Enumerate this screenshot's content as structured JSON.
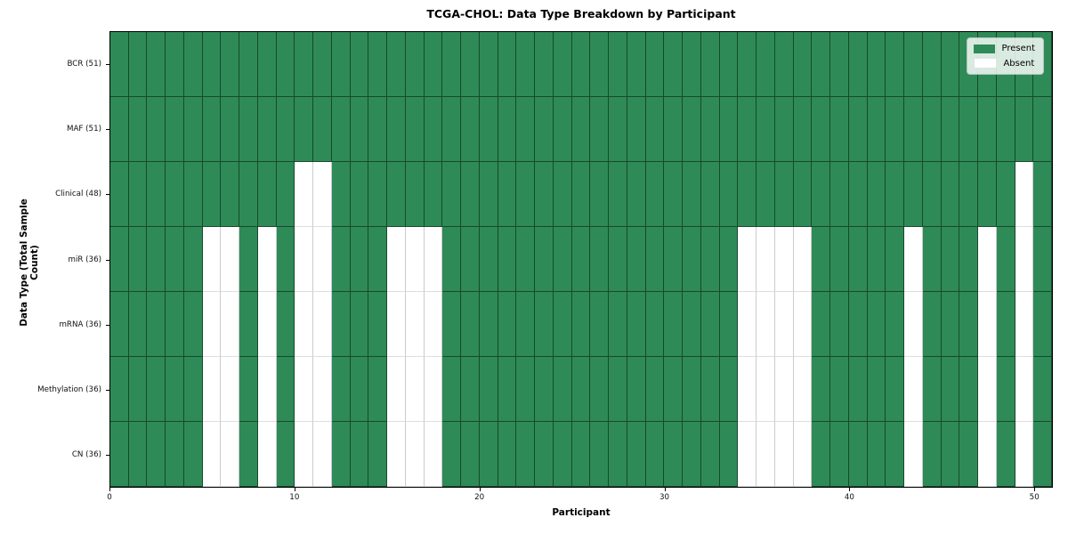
{
  "figure": {
    "background": "#ffffff"
  },
  "chart_data": {
    "type": "heatmap",
    "title": "TCGA-CHOL: Data Type Breakdown by Participant",
    "xlabel": "Participant",
    "ylabel": "Data Type (Total Sample Count)",
    "x_range": [
      0,
      51
    ],
    "x_ticks": [
      0,
      10,
      20,
      30,
      40,
      50
    ],
    "n_participants": 51,
    "grid": "cell-borders",
    "colors": {
      "present": "#2e8b57",
      "absent": "#ffffff"
    },
    "legend": {
      "position": "upper right",
      "items": [
        {
          "label": "Present",
          "state": "present",
          "color": "#2e8b57"
        },
        {
          "label": "Absent",
          "state": "absent",
          "color": "#ffffff"
        }
      ]
    },
    "rows": [
      {
        "label": "BCR (51)",
        "data_type": "BCR",
        "present_total": 51,
        "absent_participants": []
      },
      {
        "label": "MAF (51)",
        "data_type": "MAF",
        "present_total": 51,
        "absent_participants": []
      },
      {
        "label": "Clinical (48)",
        "data_type": "Clinical",
        "present_total": 48,
        "absent_participants": [
          10,
          11,
          49
        ]
      },
      {
        "label": "miR (36)",
        "data_type": "miR",
        "present_total": 36,
        "absent_participants": [
          5,
          6,
          8,
          10,
          11,
          15,
          16,
          17,
          34,
          35,
          36,
          37,
          43,
          47,
          49
        ]
      },
      {
        "label": "mRNA (36)",
        "data_type": "mRNA",
        "present_total": 36,
        "absent_participants": [
          5,
          6,
          8,
          10,
          11,
          15,
          16,
          17,
          34,
          35,
          36,
          37,
          43,
          47,
          49
        ]
      },
      {
        "label": "Methylation (36)",
        "data_type": "Methylation",
        "present_total": 36,
        "absent_participants": [
          5,
          6,
          8,
          10,
          11,
          15,
          16,
          17,
          34,
          35,
          36,
          37,
          43,
          47,
          49
        ]
      },
      {
        "label": "CN (36)",
        "data_type": "CN",
        "present_total": 36,
        "absent_participants": [
          5,
          6,
          8,
          10,
          11,
          15,
          16,
          17,
          34,
          35,
          36,
          37,
          43,
          47,
          49
        ]
      }
    ]
  }
}
